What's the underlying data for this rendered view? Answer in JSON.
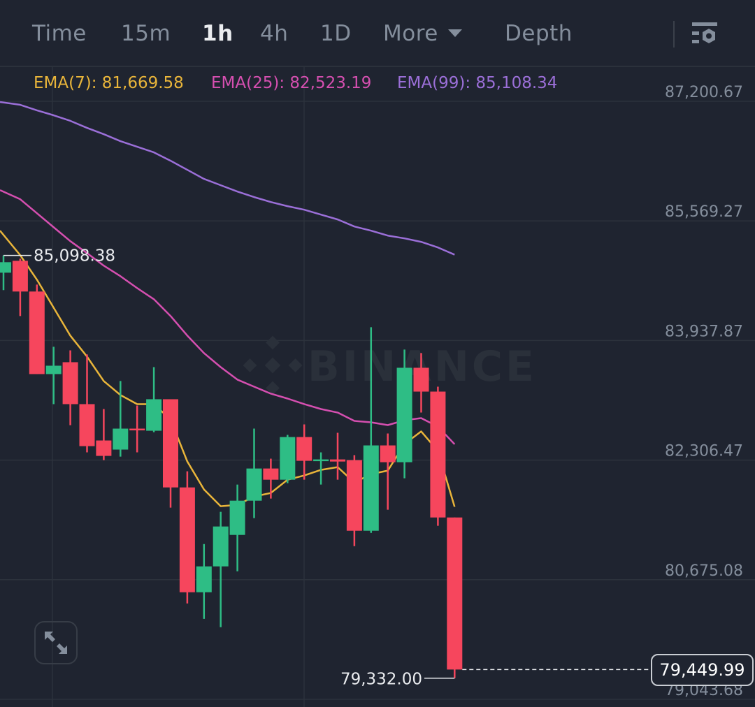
{
  "toolbar": {
    "tabs": [
      {
        "label": "Time",
        "active": false
      },
      {
        "label": "15m",
        "active": false
      },
      {
        "label": "1h",
        "active": true
      },
      {
        "label": "4h",
        "active": false
      },
      {
        "label": "1D",
        "active": false
      },
      {
        "label": "More",
        "active": false
      },
      {
        "label": "Depth",
        "active": false
      }
    ],
    "more_icon": "caret-down-icon",
    "settings_icon": "chart-settings-icon"
  },
  "legend": {
    "ema7": "EMA(7): 81,669.58",
    "ema25": "EMA(25): 82,523.19",
    "ema99": "EMA(99): 85,108.34"
  },
  "watermark": "BINANCE",
  "fullscreen_icon": "expand-icon",
  "colors": {
    "up": "#2ebd85",
    "down": "#f6465d",
    "ema7": "#e9b53a",
    "ema25": "#d54fb0",
    "ema99": "#9b6fd8",
    "grid": "#2c323c"
  },
  "chart_data": {
    "type": "candlestick",
    "interval": "1h",
    "title": "",
    "y_ticks": [
      "87,200.67",
      "85,569.27",
      "83,937.87",
      "82,306.47",
      "80,675.08",
      "79,043.68"
    ],
    "y_tick_values": [
      87200.67,
      85569.27,
      83937.87,
      82306.47,
      80675.08,
      79043.68
    ],
    "ylim": [
      79043.68,
      87200.67
    ],
    "grid": true,
    "max_label": "85,098.38",
    "min_label": "79,332.00",
    "last_price_label": "79,449.99",
    "last_price": 79449.99,
    "candles": [
      [
        84863,
        85098.38,
        84625,
        85006
      ],
      [
        85025,
        85054,
        84272,
        84606
      ],
      [
        84606,
        84701,
        83480,
        83480
      ],
      [
        83480,
        83852,
        83070,
        83594
      ],
      [
        83642,
        83804,
        82783,
        83070
      ],
      [
        83070,
        83747,
        82412,
        82497
      ],
      [
        82574,
        83003,
        82306,
        82364
      ],
      [
        82450,
        83385,
        82354,
        82736
      ],
      [
        82736,
        83051,
        82412,
        82717
      ],
      [
        82707,
        83575,
        82688,
        83137
      ],
      [
        83137,
        83137,
        81658,
        81934
      ],
      [
        81934,
        82154,
        80351,
        80504
      ],
      [
        80504,
        81162,
        80141,
        80857
      ],
      [
        80857,
        81601,
        80027,
        81401
      ],
      [
        81286,
        81973,
        80790,
        81753
      ],
      [
        81753,
        82736,
        81515,
        82192
      ],
      [
        82192,
        82326,
        81782,
        82039
      ],
      [
        82039,
        82650,
        81992,
        82621
      ],
      [
        82621,
        82793,
        82039,
        82297
      ],
      [
        82297,
        82412,
        81973,
        82316
      ],
      [
        82316,
        82679,
        82039,
        82287
      ],
      [
        82306,
        82374,
        81133,
        81343
      ],
      [
        81343,
        84119,
        81314,
        82507
      ],
      [
        82507,
        82669,
        81630,
        82278
      ],
      [
        82278,
        83814,
        82058,
        83566
      ],
      [
        83566,
        83766,
        82955,
        83241
      ],
      [
        83241,
        83308,
        81410,
        81524
      ],
      [
        81524,
        81524,
        79332,
        79449.99
      ]
    ],
    "series": [
      {
        "name": "EMA(7)",
        "values": [
          85436,
          85102,
          84768,
          84386,
          84004,
          83718,
          83385,
          83194,
          83070,
          83070,
          82860,
          82288,
          81906,
          81677,
          81696,
          81810,
          81858,
          82039,
          82097,
          82173,
          82211,
          82001,
          82116,
          82163,
          82526,
          82698,
          82431,
          81669.58
        ]
      },
      {
        "name": "EMA(25)",
        "values": [
          85989,
          85865,
          85674,
          85483,
          85293,
          85130,
          84959,
          84815,
          84653,
          84501,
          84272,
          84005,
          83766,
          83575,
          83404,
          83308,
          83213,
          83146,
          83070,
          83003,
          82955,
          82841,
          82822,
          82784,
          82850,
          82879,
          82764,
          82523.19
        ]
      },
      {
        "name": "EMA(99)",
        "values": [
          87191,
          87153,
          87077,
          87010,
          86934,
          86838,
          86752,
          86657,
          86581,
          86504,
          86390,
          86266,
          86142,
          86056,
          85970,
          85894,
          85827,
          85770,
          85722,
          85655,
          85589,
          85493,
          85436,
          85369,
          85331,
          85283,
          85207,
          85108.34
        ]
      }
    ]
  }
}
